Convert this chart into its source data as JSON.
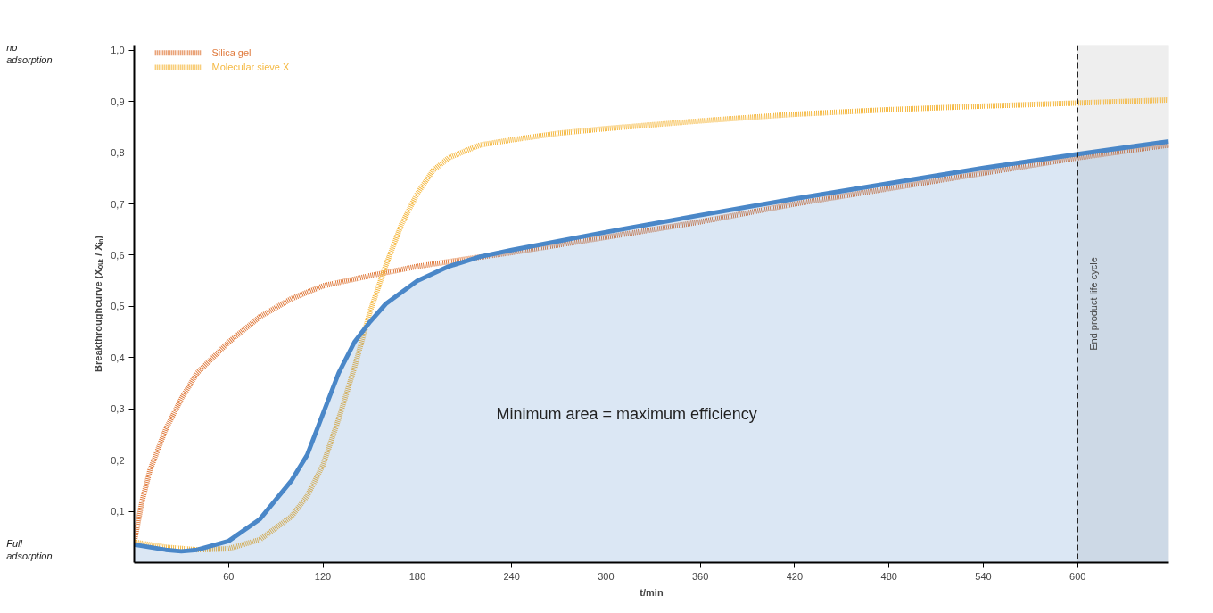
{
  "chart_data": {
    "type": "line",
    "xlabel": "t/min",
    "ylabel": "Breakthroughcurve (Xₒᵤₜ / Xᵢₙ)",
    "xlim": [
      0,
      658
    ],
    "ylim": [
      0,
      1.01
    ],
    "xticks": [
      60,
      120,
      180,
      240,
      300,
      360,
      420,
      480,
      540,
      600
    ],
    "yticks": [
      {
        "value": 0.1,
        "label": "0,1"
      },
      {
        "value": 0.2,
        "label": "0,2"
      },
      {
        "value": 0.3,
        "label": "0,3"
      },
      {
        "value": 0.4,
        "label": "0,4"
      },
      {
        "value": 0.5,
        "label": "0,5"
      },
      {
        "value": 0.6,
        "label": "0,6"
      },
      {
        "value": 0.7,
        "label": "0,7"
      },
      {
        "value": 0.8,
        "label": "0,8"
      },
      {
        "value": 0.9,
        "label": "0,9"
      },
      {
        "value": 1.0,
        "label": "1,0"
      }
    ],
    "grid": false,
    "legend": "top left",
    "series": [
      {
        "name": "Silica gel",
        "color": "#e07b3e",
        "line_style": "dotted",
        "x": [
          0,
          5,
          10,
          20,
          30,
          40,
          60,
          80,
          100,
          120,
          150,
          180,
          210,
          240,
          300,
          360,
          420,
          480,
          540,
          600,
          658
        ],
        "values": [
          0.04,
          0.12,
          0.18,
          0.26,
          0.32,
          0.37,
          0.43,
          0.48,
          0.515,
          0.54,
          0.56,
          0.578,
          0.592,
          0.605,
          0.635,
          0.665,
          0.7,
          0.73,
          0.76,
          0.79,
          0.815
        ]
      },
      {
        "name": "Molecular sieve X",
        "color": "#f5b942",
        "line_style": "dotted",
        "x": [
          0,
          20,
          40,
          60,
          80,
          100,
          110,
          120,
          130,
          140,
          150,
          160,
          170,
          180,
          190,
          200,
          220,
          240,
          270,
          300,
          360,
          420,
          480,
          540,
          600,
          658
        ],
        "values": [
          0.04,
          0.03,
          0.025,
          0.027,
          0.045,
          0.09,
          0.13,
          0.19,
          0.28,
          0.38,
          0.49,
          0.58,
          0.66,
          0.72,
          0.765,
          0.79,
          0.815,
          0.825,
          0.838,
          0.847,
          0.862,
          0.875,
          0.884,
          0.891,
          0.897,
          0.903
        ]
      },
      {
        "type": "area",
        "color": "#4a87c8",
        "x": [
          0,
          20,
          30,
          40,
          60,
          80,
          100,
          110,
          120,
          130,
          140,
          150,
          160,
          180,
          200,
          220,
          240,
          300,
          360,
          420,
          480,
          540,
          600,
          658
        ],
        "values": [
          0.035,
          0.025,
          0.022,
          0.025,
          0.042,
          0.085,
          0.16,
          0.21,
          0.29,
          0.37,
          0.43,
          0.47,
          0.505,
          0.55,
          0.578,
          0.597,
          0.61,
          0.645,
          0.678,
          0.71,
          0.74,
          0.77,
          0.797,
          0.822
        ]
      }
    ],
    "ref_lines": [
      {
        "axis": "x",
        "value": 600,
        "label": "End product life cycle",
        "color": "#222222",
        "line_style": "dashed"
      }
    ],
    "bands": [
      {
        "axis": "x",
        "from": 600,
        "to": 658,
        "color": "#eeeeee"
      }
    ],
    "annotations": [
      "no adsorption",
      "Full adsorption",
      "Minimum area = maximum efficiency"
    ]
  }
}
